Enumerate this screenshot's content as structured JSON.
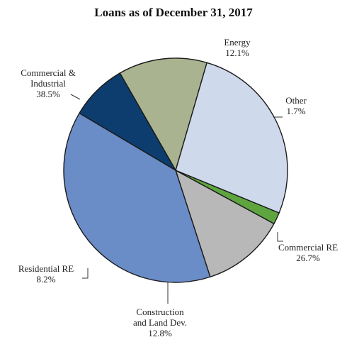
{
  "chart_data": {
    "type": "pie",
    "title": "Loans as of December 31, 2017",
    "slices": [
      {
        "label": [
          "Energy"
        ],
        "value": 12.1,
        "pct": "12.1%",
        "color": "#b8b8b8"
      },
      {
        "label": [
          "Other"
        ],
        "value": 1.7,
        "pct": "1.7%",
        "color": "#5fa53f"
      },
      {
        "label": [
          "Commercial  RE"
        ],
        "value": 26.7,
        "pct": "26.7%",
        "color": "#cfd9ec"
      },
      {
        "label": [
          "Construction",
          "and Land Dev."
        ],
        "value": 12.8,
        "pct": "12.8%",
        "color": "#a9b38f"
      },
      {
        "label": [
          "Residential RE"
        ],
        "value": 8.2,
        "pct": "8.2%",
        "color": "#0d3d6e"
      },
      {
        "label": [
          "Commercial  &",
          "Industrial"
        ],
        "value": 38.5,
        "pct": "38.5%",
        "color": "#6a8cc7"
      }
    ],
    "legend": "none"
  }
}
